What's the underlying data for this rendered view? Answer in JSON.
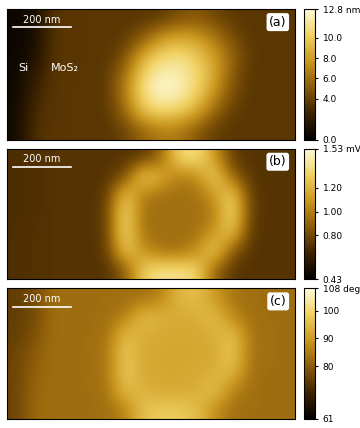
{
  "chart_data": [
    {
      "type": "heatmap",
      "panel_label": "(a)",
      "scale_bar": "200 nm",
      "annotations": [
        "Si",
        "MoS₂"
      ],
      "tick_labels": false,
      "cells": [
        [
          0.5,
          0.8,
          3.4,
          3.5,
          3.5,
          3.5,
          3.5,
          3.5,
          3.6,
          4.5,
          5.0,
          4.2,
          3.6,
          3.5,
          3.5,
          3.5
        ],
        [
          0.5,
          0.9,
          3.4,
          3.5,
          3.5,
          3.5,
          3.6,
          5.0,
          7.5,
          8.5,
          8.0,
          6.5,
          4.5,
          3.5,
          3.5,
          3.5
        ],
        [
          0.5,
          1.2,
          3.4,
          3.5,
          3.5,
          3.5,
          4.5,
          8.5,
          10.5,
          11.0,
          10.0,
          8.0,
          5.5,
          3.6,
          3.5,
          3.5
        ],
        [
          0.6,
          2.0,
          3.5,
          3.5,
          3.5,
          3.6,
          6.0,
          10.5,
          12.2,
          12.0,
          10.8,
          8.5,
          5.0,
          3.5,
          3.5,
          3.5
        ],
        [
          0.6,
          2.5,
          3.5,
          3.5,
          3.5,
          3.6,
          6.5,
          11.0,
          12.8,
          12.2,
          10.5,
          7.5,
          4.5,
          3.5,
          3.5,
          3.5
        ],
        [
          0.7,
          3.0,
          3.5,
          3.5,
          3.5,
          3.5,
          5.5,
          9.5,
          10.5,
          10.0,
          8.5,
          5.5,
          3.8,
          3.5,
          3.5,
          3.5
        ],
        [
          0.7,
          3.2,
          3.5,
          3.5,
          3.5,
          3.5,
          4.0,
          5.5,
          6.5,
          6.5,
          5.0,
          3.8,
          3.5,
          3.5,
          3.5,
          3.5
        ]
      ],
      "colorbar": {
        "range": [
          0.0,
          12.8
        ],
        "ticks": [
          0.0,
          4.0,
          6.0,
          8.0,
          10.0,
          {
            "value": 12.8,
            "label": "12.8 nm"
          }
        ]
      }
    },
    {
      "type": "heatmap",
      "panel_label": "(b)",
      "scale_bar": "200 nm",
      "tick_labels": false,
      "cells": [
        [
          0.7,
          0.7,
          0.72,
          0.72,
          0.72,
          0.72,
          0.72,
          0.73,
          0.9,
          1.35,
          1.4,
          1.1,
          0.75,
          0.72,
          0.72,
          0.72
        ],
        [
          0.7,
          0.7,
          0.72,
          0.72,
          0.72,
          0.72,
          0.8,
          1.35,
          1.2,
          1.0,
          1.05,
          1.35,
          0.9,
          0.72,
          0.72,
          0.72
        ],
        [
          0.7,
          0.7,
          0.72,
          0.72,
          0.72,
          0.73,
          1.3,
          1.0,
          0.95,
          0.95,
          0.95,
          1.1,
          1.35,
          0.75,
          0.72,
          0.72
        ],
        [
          0.7,
          0.7,
          0.72,
          0.72,
          0.72,
          0.75,
          1.4,
          0.95,
          0.95,
          0.95,
          0.95,
          1.0,
          1.4,
          0.75,
          0.72,
          0.72
        ],
        [
          0.7,
          0.71,
          0.72,
          0.72,
          0.72,
          0.75,
          1.4,
          0.95,
          0.95,
          0.95,
          0.95,
          1.1,
          1.3,
          0.73,
          0.72,
          0.72
        ],
        [
          0.7,
          0.71,
          0.72,
          0.72,
          0.72,
          0.73,
          1.3,
          1.1,
          0.95,
          0.95,
          1.05,
          1.35,
          0.85,
          0.72,
          0.72,
          0.72
        ],
        [
          0.7,
          0.71,
          0.72,
          0.72,
          0.72,
          0.72,
          0.85,
          1.3,
          1.4,
          1.4,
          1.35,
          0.9,
          0.73,
          0.72,
          0.72,
          0.72
        ]
      ],
      "colorbar": {
        "range": [
          0.43,
          1.53
        ],
        "ticks": [
          0.43,
          {
            "value": 0.8,
            "label": "0.80"
          },
          {
            "value": 1.0,
            "label": "1.00"
          },
          {
            "value": 1.2,
            "label": "1.20"
          },
          {
            "value": 1.53,
            "label": "1.53 mV"
          }
        ]
      }
    },
    {
      "type": "heatmap",
      "panel_label": "(c)",
      "scale_bar": "200 nm",
      "tick_labels": false,
      "cells": [
        [
          75,
          77,
          83,
          83,
          83,
          83,
          83,
          83,
          86,
          95,
          96,
          90,
          84,
          83,
          83,
          83
        ],
        [
          75,
          77,
          83,
          83,
          83,
          83,
          85,
          96,
          94,
          92,
          93,
          96,
          87,
          83,
          83,
          83
        ],
        [
          75,
          78,
          83,
          83,
          83,
          83,
          96,
          93,
          92,
          92,
          92,
          93,
          97,
          84,
          83,
          83
        ],
        [
          76,
          80,
          83,
          83,
          83,
          84,
          98,
          92,
          92,
          92,
          92,
          92,
          98,
          84,
          83,
          83
        ],
        [
          76,
          81,
          83,
          83,
          83,
          84,
          98,
          92,
          92,
          92,
          92,
          93,
          96,
          83,
          83,
          83
        ],
        [
          76,
          82,
          83,
          83,
          83,
          83,
          96,
          94,
          92,
          92,
          93,
          97,
          86,
          83,
          83,
          83
        ],
        [
          76,
          82,
          83,
          83,
          83,
          83,
          86,
          96,
          98,
          98,
          96,
          88,
          83,
          83,
          83,
          83
        ]
      ],
      "colorbar": {
        "range": [
          61,
          108
        ],
        "ticks": [
          61,
          80,
          90,
          100,
          {
            "value": 108,
            "label": "108 deg"
          }
        ]
      }
    }
  ]
}
